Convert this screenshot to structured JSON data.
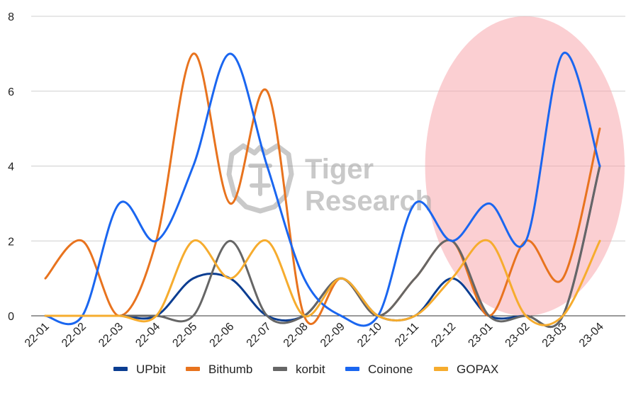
{
  "chart_data": {
    "type": "line",
    "title": "",
    "xlabel": "",
    "ylabel": "",
    "categories": [
      "22-01",
      "22-02",
      "22-03",
      "22-04",
      "22-05",
      "22-06",
      "22-07",
      "22-08",
      "22-09",
      "22-10",
      "22-11",
      "22-12",
      "23-01",
      "23-02",
      "23-03",
      "23-04"
    ],
    "ylim": [
      0,
      8
    ],
    "yticks": [
      "0",
      "2",
      "4",
      "6",
      "8"
    ],
    "grid": true,
    "legend_position": "bottom",
    "series": [
      {
        "name": "UPbit",
        "color": "#0b3d91",
        "values": [
          0,
          0,
          0,
          0,
          1,
          1,
          0,
          0,
          1,
          0,
          0,
          1,
          0,
          0,
          0,
          4
        ]
      },
      {
        "name": "Bithumb",
        "color": "#e8731e",
        "values": [
          1,
          2,
          0,
          2,
          7,
          3,
          6,
          0,
          1,
          0,
          1,
          2,
          0,
          2,
          1,
          5
        ]
      },
      {
        "name": "korbit",
        "color": "#666666",
        "values": [
          0,
          0,
          0,
          0,
          0,
          2,
          0,
          0,
          1,
          0,
          1,
          2,
          0,
          0,
          0,
          4
        ]
      },
      {
        "name": "Coinone",
        "color": "#1a66f0",
        "values": [
          0,
          0,
          3,
          2,
          4,
          7,
          4,
          1,
          0,
          0,
          3,
          2,
          3,
          2,
          7,
          4
        ]
      },
      {
        "name": "GOPAX",
        "color": "#f6ac2e",
        "values": [
          0,
          0,
          0,
          0,
          2,
          1,
          2,
          0,
          1,
          0,
          0,
          1,
          2,
          0,
          0,
          2
        ]
      }
    ],
    "highlight": {
      "from": "23-01",
      "to": "23-04",
      "color": "#f7a8ad"
    },
    "watermark": {
      "line1": "Tiger",
      "line2": "Research"
    }
  }
}
